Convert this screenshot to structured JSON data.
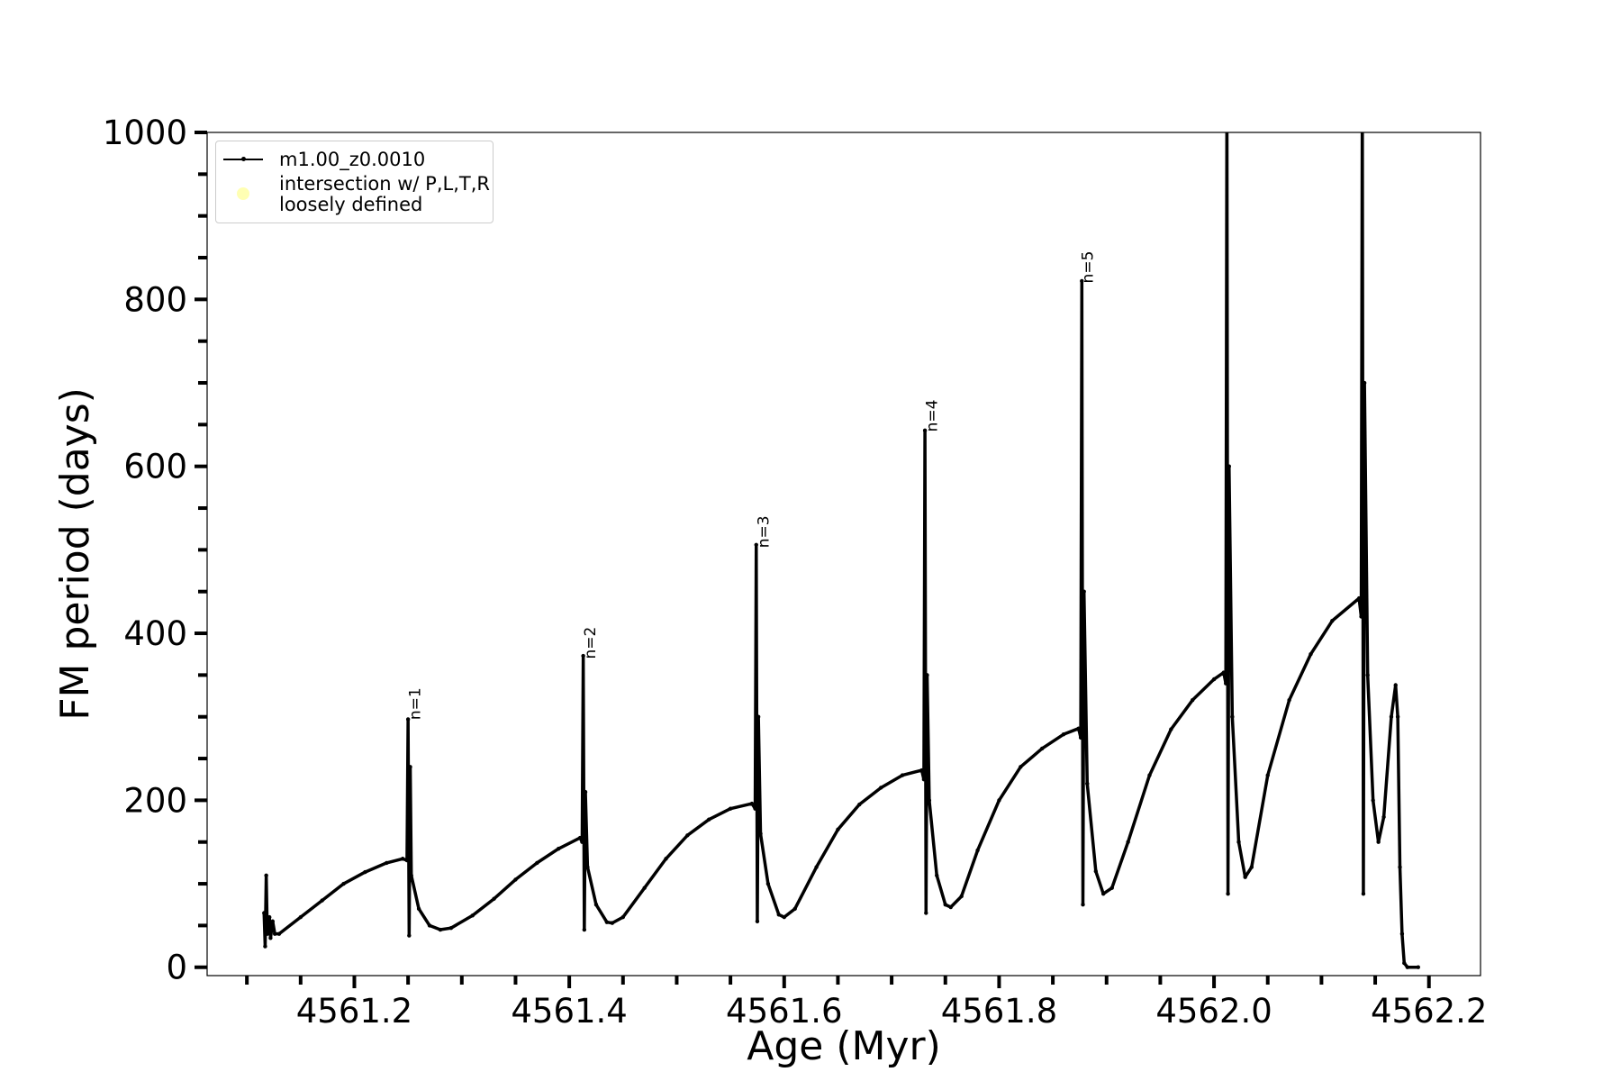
{
  "chart_data": {
    "type": "line",
    "xlabel": "Age (Myr)",
    "ylabel": "FM period (days)",
    "xlim": [
      4561.063,
      4562.248
    ],
    "ylim": [
      -10,
      1000
    ],
    "xticks": [
      4561.2,
      4561.4,
      4561.6,
      4561.8,
      {
        "value": 4562,
        "label": "4562.0"
      },
      4562.2
    ],
    "yticks": [
      0,
      200,
      400,
      600,
      800,
      1000
    ],
    "xticks_minor": [
      4561.1,
      4561.15,
      4561.25,
      4561.3,
      4561.35,
      4561.45,
      4561.5,
      4561.55,
      4561.65,
      4561.7,
      4561.75,
      4561.85,
      4561.9,
      4561.95,
      4562.05,
      4562.1,
      4562.15
    ],
    "yticks_minor": [
      50,
      100,
      150,
      250,
      300,
      350,
      450,
      500,
      550,
      650,
      700,
      750,
      850,
      900,
      950
    ],
    "grid": false,
    "legend": "upper left",
    "series": [
      {
        "name": "m1.00_z0.0010",
        "color": "#000000",
        "marker": "point",
        "x": [
          4561.116,
          4561.117,
          4561.118,
          4561.119,
          4561.121,
          4561.122,
          4561.124,
          4561.126,
          4561.13,
          4561.15,
          4561.17,
          4561.19,
          4561.21,
          4561.23,
          4561.245,
          4561.249,
          4561.25,
          4561.251,
          4561.252,
          4561.253,
          4561.26,
          4561.27,
          4561.28,
          4561.29,
          4561.31,
          4561.33,
          4561.35,
          4561.37,
          4561.39,
          4561.41,
          4561.412,
          4561.413,
          4561.414,
          4561.415,
          4561.417,
          4561.425,
          4561.435,
          4561.44,
          4561.45,
          4561.47,
          4561.49,
          4561.51,
          4561.53,
          4561.55,
          4561.57,
          4561.573,
          4561.574,
          4561.575,
          4561.576,
          4561.578,
          4561.585,
          4561.595,
          4561.6,
          4561.61,
          4561.63,
          4561.65,
          4561.67,
          4561.69,
          4561.71,
          4561.728,
          4561.73,
          4561.731,
          4561.732,
          4561.733,
          4561.735,
          4561.742,
          4561.75,
          4561.755,
          4561.765,
          4561.78,
          4561.8,
          4561.82,
          4561.84,
          4561.86,
          4561.874,
          4561.876,
          4561.877,
          4561.878,
          4561.879,
          4561.882,
          4561.89,
          4561.897,
          4561.905,
          4561.92,
          4561.94,
          4561.96,
          4561.98,
          4562.0,
          4562.009,
          4562.011,
          4562.012,
          4562.013,
          4562.014,
          4562.017,
          4562.023,
          4562.029,
          4562.035,
          4562.05,
          4562.07,
          4562.09,
          4562.11,
          4562.135,
          4562.137,
          4562.138,
          4562.139,
          4562.14,
          4562.143,
          4562.148,
          4562.153,
          4562.158,
          4562.165,
          4562.169,
          4562.171,
          4562.173,
          4562.175,
          4562.177,
          4562.18,
          4562.19
        ],
        "values": [
          65,
          25,
          110,
          40,
          60,
          35,
          55,
          40,
          40,
          60,
          80,
          100,
          114,
          125,
          130,
          128,
          297,
          38,
          240,
          110,
          70,
          50,
          45,
          47,
          62,
          82,
          105,
          125,
          142,
          155,
          150,
          373,
          45,
          210,
          120,
          75,
          54,
          53,
          60,
          95,
          130,
          158,
          177,
          190,
          196,
          190,
          506,
          55,
          300,
          160,
          100,
          63,
          60,
          70,
          120,
          165,
          195,
          215,
          230,
          236,
          225,
          643,
          65,
          350,
          200,
          110,
          75,
          72,
          85,
          140,
          200,
          240,
          262,
          279,
          286,
          275,
          822,
          75,
          450,
          220,
          115,
          88,
          95,
          150,
          230,
          285,
          320,
          345,
          353,
          340,
          1050,
          88,
          600,
          300,
          150,
          108,
          120,
          230,
          320,
          375,
          415,
          442,
          420,
          1050,
          88,
          700,
          350,
          200,
          150,
          180,
          300,
          338,
          300,
          120,
          40,
          5,
          0,
          0
        ]
      },
      {
        "name": "intersection w/ P,L,T,R\nloosely defined",
        "color": "#ffffb3",
        "marker": "circle",
        "x": [],
        "values": []
      }
    ],
    "annotations": [
      {
        "text": "n=1",
        "x": 4561.253,
        "y": 292
      },
      {
        "text": "n=2",
        "x": 4561.416,
        "y": 365
      },
      {
        "text": "n=3",
        "x": 4561.577,
        "y": 498
      },
      {
        "text": "n=4",
        "x": 4561.734,
        "y": 637
      },
      {
        "text": "n=5",
        "x": 4561.879,
        "y": 815
      }
    ]
  }
}
